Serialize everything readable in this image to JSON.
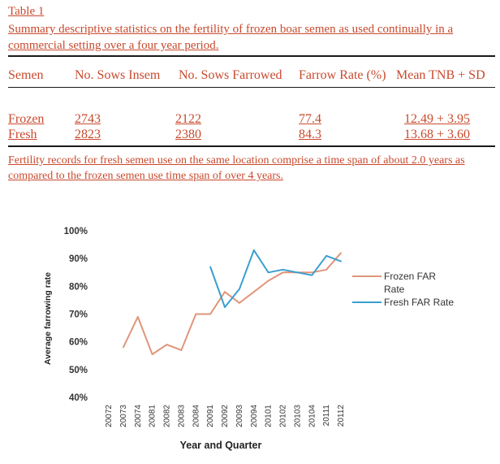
{
  "table": {
    "label": "Table 1",
    "title": "Summary descriptive statistics on the fertility of frozen boar semen as used continually in a commercial setting over a four year period.",
    "headers": [
      "Semen",
      "No. Sows Insem",
      "No. Sows Farrowed",
      "Farrow Rate (%)",
      "Mean TNB + SD"
    ],
    "rows": [
      [
        "Frozen",
        "2743",
        "2122",
        "77.4",
        "12.49 + 3.95"
      ],
      [
        "Fresh",
        "2823",
        "2380",
        "84.3",
        "13.68 + 3.60"
      ]
    ],
    "footnote": "Fertility records for fresh semen use on the same location comprise a time span of about 2.0 years as compared to the frozen semen use time span of over 4 years."
  },
  "colors": {
    "text_red": "#c84a2e",
    "frozen_line": "#e0957a",
    "fresh_line": "#3a9fd0"
  },
  "chart_data": {
    "type": "line",
    "x": [
      "20072",
      "20073",
      "20074",
      "20081",
      "20082",
      "20083",
      "20084",
      "20091",
      "20092",
      "20093",
      "20094",
      "20101",
      "20102",
      "20103",
      "20104",
      "20111",
      "20112"
    ],
    "series": [
      {
        "name": "Frozen FAR Rate",
        "values": [
          null,
          58,
          69,
          55.5,
          59,
          57,
          70,
          70,
          78,
          74,
          78,
          82,
          85,
          85,
          85,
          86,
          92
        ]
      },
      {
        "name": "Fresh FAR Rate",
        "values": [
          null,
          null,
          null,
          null,
          null,
          null,
          null,
          87,
          72.5,
          79,
          93,
          85,
          86,
          85,
          84,
          91,
          89
        ]
      }
    ],
    "xlabel": "Year and Quarter",
    "ylabel": "Average farrowing rate",
    "yticks": [
      "40%",
      "50%",
      "60%",
      "70%",
      "80%",
      "90%",
      "100%"
    ],
    "ylim": [
      40,
      100
    ],
    "legend_position": "right",
    "grid": false
  }
}
